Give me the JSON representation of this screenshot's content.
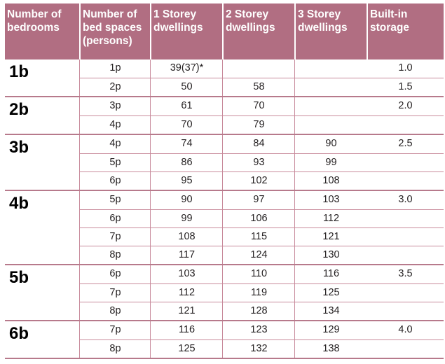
{
  "table": {
    "headers": [
      "Number of\nbedrooms",
      "Number of\nbed spaces\n(persons)",
      "1 Storey\ndwellings",
      "2 Storey\ndwellings",
      "3 Storey\ndwellings",
      "Built-in\nstorage"
    ],
    "groups": [
      {
        "bedrooms": "1b",
        "storage": "1.0",
        "rows": [
          {
            "persons": "1p",
            "one": "39(37)*",
            "two": "",
            "three": ""
          },
          {
            "persons": "2p",
            "one": "50",
            "two": "58",
            "three": ""
          }
        ],
        "storage2": "1.5"
      },
      {
        "bedrooms": "2b",
        "storage": "2.0",
        "rows": [
          {
            "persons": "3p",
            "one": "61",
            "two": "70",
            "three": ""
          },
          {
            "persons": "4p",
            "one": "70",
            "two": "79",
            "three": ""
          }
        ]
      },
      {
        "bedrooms": "3b",
        "storage": "2.5",
        "rows": [
          {
            "persons": "4p",
            "one": "74",
            "two": "84",
            "three": "90"
          },
          {
            "persons": "5p",
            "one": "86",
            "two": "93",
            "three": "99"
          },
          {
            "persons": "6p",
            "one": "95",
            "two": "102",
            "three": "108"
          }
        ]
      },
      {
        "bedrooms": "4b",
        "storage": "3.0",
        "rows": [
          {
            "persons": "5p",
            "one": "90",
            "two": "97",
            "three": "103"
          },
          {
            "persons": "6p",
            "one": "99",
            "two": "106",
            "three": "112"
          },
          {
            "persons": "7p",
            "one": "108",
            "two": "115",
            "three": "121"
          },
          {
            "persons": "8p",
            "one": "117",
            "two": "124",
            "three": "130"
          }
        ]
      },
      {
        "bedrooms": "5b",
        "storage": "3.5",
        "rows": [
          {
            "persons": "6p",
            "one": "103",
            "two": "110",
            "three": "116"
          },
          {
            "persons": "7p",
            "one": "112",
            "two": "119",
            "three": "125"
          },
          {
            "persons": "8p",
            "one": "121",
            "two": "128",
            "three": "134"
          }
        ]
      },
      {
        "bedrooms": "6b",
        "storage": "4.0",
        "rows": [
          {
            "persons": "7p",
            "one": "116",
            "two": "123",
            "three": "129"
          },
          {
            "persons": "8p",
            "one": "125",
            "two": "132",
            "three": "138"
          }
        ]
      }
    ]
  }
}
